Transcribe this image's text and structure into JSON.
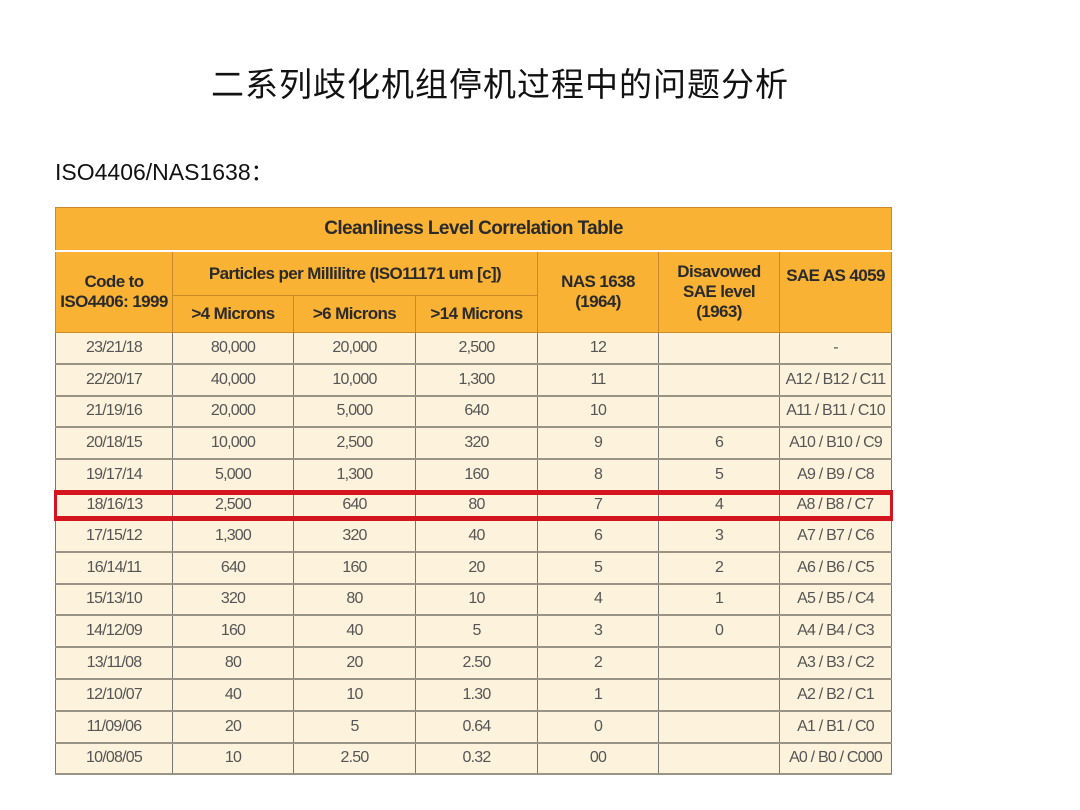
{
  "slide": {
    "title": "二系列歧化机组停机过程中的问题分析",
    "subtitle": "ISO4406/NAS1638："
  },
  "table": {
    "caption": "Cleanliness Level Correlation Table",
    "header_color": "#f9b233",
    "highlight_color": "#d4151f",
    "headers": {
      "code": "Code to ISO4406: 1999",
      "particles": "Particles per Millilitre (ISO11171 um [c])",
      "gt4": ">4 Microns",
      "gt6": ">6 Microns",
      "gt14": ">14 Microns",
      "nas": "NAS 1638 (1964)",
      "sae_level": "Disavowed SAE level (1963)",
      "sae_as": "SAE AS 4059"
    },
    "highlighted_row": "18/16/13",
    "rows": [
      [
        "23/21/18",
        "80,000",
        "20,000",
        "2,500",
        "12",
        "",
        "-"
      ],
      [
        "22/20/17",
        "40,000",
        "10,000",
        "1,300",
        "11",
        "",
        "A12 / B12 / C11"
      ],
      [
        "21/19/16",
        "20,000",
        "5,000",
        "640",
        "10",
        "",
        "A11 / B11 / C10"
      ],
      [
        "20/18/15",
        "10,000",
        "2,500",
        "320",
        "9",
        "6",
        "A10 / B10 / C9"
      ],
      [
        "19/17/14",
        "5,000",
        "1,300",
        "160",
        "8",
        "5",
        "A9 / B9 / C8"
      ],
      [
        "18/16/13",
        "2,500",
        "640",
        "80",
        "7",
        "4",
        "A8 / B8 / C7"
      ],
      [
        "17/15/12",
        "1,300",
        "320",
        "40",
        "6",
        "3",
        "A7 / B7 / C6"
      ],
      [
        "16/14/11",
        "640",
        "160",
        "20",
        "5",
        "2",
        "A6 / B6 / C5"
      ],
      [
        "15/13/10",
        "320",
        "80",
        "10",
        "4",
        "1",
        "A5 / B5 / C4"
      ],
      [
        "14/12/09",
        "160",
        "40",
        "5",
        "3",
        "0",
        "A4 / B4 / C3"
      ],
      [
        "13/11/08",
        "80",
        "20",
        "2.50",
        "2",
        "",
        "A3 / B3 / C2"
      ],
      [
        "12/10/07",
        "40",
        "10",
        "1.30",
        "1",
        "",
        "A2 / B2 / C1"
      ],
      [
        "11/09/06",
        "20",
        "5",
        "0.64",
        "0",
        "",
        "A1 / B1 / C0"
      ],
      [
        "10/08/05",
        "10",
        "2.50",
        "0.32",
        "00",
        "",
        "A0 / B0 / C000"
      ]
    ]
  }
}
